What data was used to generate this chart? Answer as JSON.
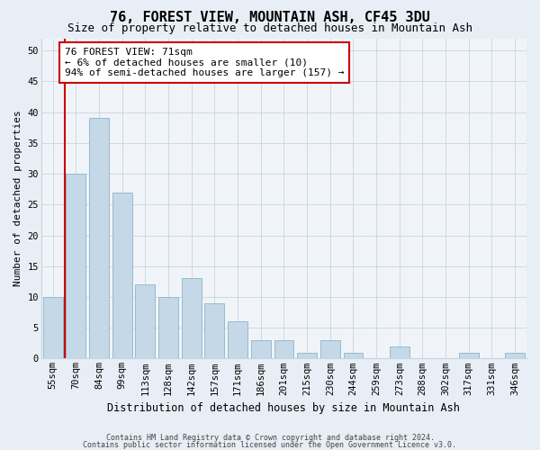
{
  "title1": "76, FOREST VIEW, MOUNTAIN ASH, CF45 3DU",
  "title2": "Size of property relative to detached houses in Mountain Ash",
  "xlabel": "Distribution of detached houses by size in Mountain Ash",
  "ylabel": "Number of detached properties",
  "categories": [
    "55sqm",
    "70sqm",
    "84sqm",
    "99sqm",
    "113sqm",
    "128sqm",
    "142sqm",
    "157sqm",
    "171sqm",
    "186sqm",
    "201sqm",
    "215sqm",
    "230sqm",
    "244sqm",
    "259sqm",
    "273sqm",
    "288sqm",
    "302sqm",
    "317sqm",
    "331sqm",
    "346sqm"
  ],
  "values": [
    10,
    30,
    39,
    27,
    12,
    10,
    13,
    9,
    6,
    3,
    3,
    1,
    3,
    1,
    0,
    2,
    0,
    0,
    1,
    0,
    1
  ],
  "bar_color": "#c5d8e8",
  "bar_edge_color": "#8ab4cc",
  "annotation_text": "76 FOREST VIEW: 71sqm\n← 6% of detached houses are smaller (10)\n94% of semi-detached houses are larger (157) →",
  "annotation_box_color": "#ffffff",
  "annotation_box_edge": "#cc0000",
  "vline_color": "#cc0000",
  "vline_x_index": 0,
  "ylim": [
    0,
    52
  ],
  "yticks": [
    0,
    5,
    10,
    15,
    20,
    25,
    30,
    35,
    40,
    45,
    50
  ],
  "footnote1": "Contains HM Land Registry data © Crown copyright and database right 2024.",
  "footnote2": "Contains public sector information licensed under the Open Government Licence v3.0.",
  "background_color": "#e8eef5",
  "plot_bg_color": "#f0f4f8",
  "grid_color": "#c8d4e0",
  "title1_fontsize": 11,
  "title2_fontsize": 9,
  "xlabel_fontsize": 8.5,
  "ylabel_fontsize": 8,
  "tick_fontsize": 7.5,
  "annot_fontsize": 8
}
